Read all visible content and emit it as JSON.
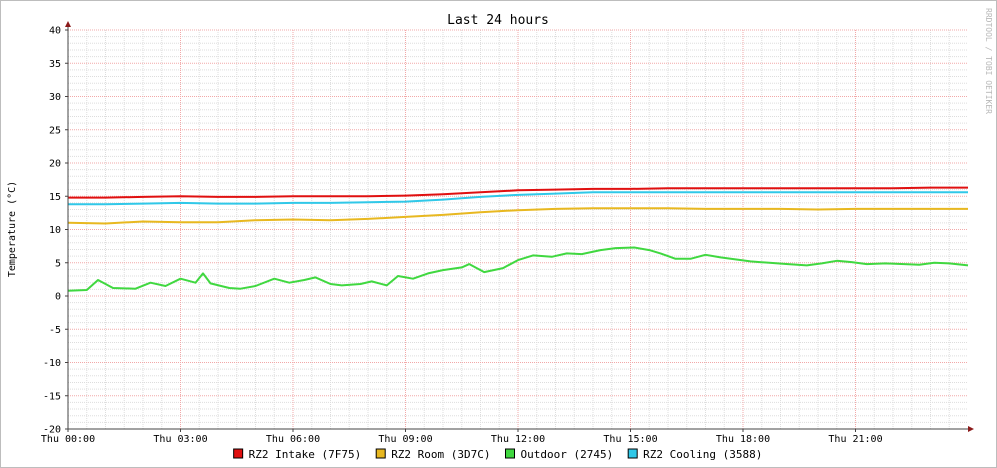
{
  "chart_data": {
    "type": "line",
    "title": "Last 24 hours",
    "xlabel": "",
    "ylabel": "Temperature (°C)",
    "watermark": "RRDTOOL / TOBI OETIKER",
    "ylim": [
      -20,
      40
    ],
    "yticks": [
      "40",
      "35",
      "30",
      "25",
      "20",
      "15",
      "10",
      "5",
      "0",
      "-5",
      "-10",
      "-15",
      "-20"
    ],
    "xlim_hours": [
      0,
      24
    ],
    "xticks": [
      {
        "h": 0,
        "label": "Thu 00:00"
      },
      {
        "h": 3,
        "label": "Thu 03:00"
      },
      {
        "h": 6,
        "label": "Thu 06:00"
      },
      {
        "h": 9,
        "label": "Thu 09:00"
      },
      {
        "h": 12,
        "label": "Thu 12:00"
      },
      {
        "h": 15,
        "label": "Thu 15:00"
      },
      {
        "h": 18,
        "label": "Thu 18:00"
      },
      {
        "h": 21,
        "label": "Thu 21:00"
      }
    ],
    "grid": true,
    "legend_position": "bottom",
    "series": [
      {
        "name": "RZ2 Intake (7F75)",
        "color": "#e01010",
        "points": [
          [
            0,
            14.8
          ],
          [
            1,
            14.8
          ],
          [
            2,
            14.9
          ],
          [
            3,
            15.0
          ],
          [
            4,
            14.9
          ],
          [
            5,
            14.9
          ],
          [
            6,
            15.0
          ],
          [
            7,
            15.0
          ],
          [
            8,
            15.0
          ],
          [
            9,
            15.1
          ],
          [
            10,
            15.3
          ],
          [
            11,
            15.6
          ],
          [
            12,
            15.9
          ],
          [
            13,
            16.0
          ],
          [
            14,
            16.1
          ],
          [
            15,
            16.1
          ],
          [
            16,
            16.2
          ],
          [
            17,
            16.2
          ],
          [
            18,
            16.2
          ],
          [
            19,
            16.2
          ],
          [
            20,
            16.2
          ],
          [
            21,
            16.2
          ],
          [
            22,
            16.2
          ],
          [
            23,
            16.3
          ],
          [
            24,
            16.3
          ]
        ]
      },
      {
        "name": "RZ2 Room (3D7C)",
        "color": "#e8b820",
        "points": [
          [
            0,
            11.0
          ],
          [
            1,
            10.9
          ],
          [
            2,
            11.2
          ],
          [
            3,
            11.1
          ],
          [
            4,
            11.1
          ],
          [
            5,
            11.4
          ],
          [
            6,
            11.5
          ],
          [
            7,
            11.4
          ],
          [
            8,
            11.6
          ],
          [
            9,
            11.9
          ],
          [
            10,
            12.2
          ],
          [
            11,
            12.6
          ],
          [
            12,
            12.9
          ],
          [
            13,
            13.1
          ],
          [
            14,
            13.2
          ],
          [
            15,
            13.2
          ],
          [
            16,
            13.2
          ],
          [
            17,
            13.1
          ],
          [
            18,
            13.1
          ],
          [
            19,
            13.1
          ],
          [
            20,
            13.0
          ],
          [
            21,
            13.1
          ],
          [
            22,
            13.1
          ],
          [
            23,
            13.1
          ],
          [
            24,
            13.1
          ]
        ]
      },
      {
        "name": "Outdoor (2745)",
        "color": "#40d840",
        "points": [
          [
            0,
            0.8
          ],
          [
            0.5,
            0.9
          ],
          [
            0.8,
            2.4
          ],
          [
            1.2,
            1.2
          ],
          [
            1.8,
            1.1
          ],
          [
            2.2,
            2.0
          ],
          [
            2.6,
            1.5
          ],
          [
            3.0,
            2.6
          ],
          [
            3.4,
            2.0
          ],
          [
            3.6,
            3.4
          ],
          [
            3.8,
            1.9
          ],
          [
            4.3,
            1.2
          ],
          [
            4.6,
            1.1
          ],
          [
            5.0,
            1.5
          ],
          [
            5.5,
            2.6
          ],
          [
            5.9,
            2.0
          ],
          [
            6.3,
            2.4
          ],
          [
            6.6,
            2.8
          ],
          [
            7.0,
            1.8
          ],
          [
            7.3,
            1.6
          ],
          [
            7.8,
            1.8
          ],
          [
            8.1,
            2.2
          ],
          [
            8.5,
            1.6
          ],
          [
            8.8,
            3.0
          ],
          [
            9.2,
            2.6
          ],
          [
            9.6,
            3.4
          ],
          [
            10.0,
            3.9
          ],
          [
            10.5,
            4.3
          ],
          [
            10.7,
            4.8
          ],
          [
            11.1,
            3.6
          ],
          [
            11.6,
            4.2
          ],
          [
            12.0,
            5.4
          ],
          [
            12.4,
            6.1
          ],
          [
            12.9,
            5.9
          ],
          [
            13.3,
            6.4
          ],
          [
            13.7,
            6.3
          ],
          [
            14.2,
            6.9
          ],
          [
            14.6,
            7.2
          ],
          [
            15.1,
            7.3
          ],
          [
            15.5,
            6.9
          ],
          [
            15.8,
            6.4
          ],
          [
            16.2,
            5.6
          ],
          [
            16.6,
            5.6
          ],
          [
            17.0,
            6.2
          ],
          [
            17.4,
            5.8
          ],
          [
            17.8,
            5.5
          ],
          [
            18.2,
            5.2
          ],
          [
            18.7,
            5.0
          ],
          [
            19.2,
            4.8
          ],
          [
            19.7,
            4.6
          ],
          [
            20.1,
            4.9
          ],
          [
            20.5,
            5.3
          ],
          [
            20.9,
            5.1
          ],
          [
            21.3,
            4.8
          ],
          [
            21.8,
            4.9
          ],
          [
            22.3,
            4.8
          ],
          [
            22.7,
            4.7
          ],
          [
            23.1,
            5.0
          ],
          [
            23.5,
            4.9
          ],
          [
            24.0,
            4.6
          ]
        ]
      },
      {
        "name": "RZ2 Cooling (3588)",
        "color": "#30c8e8",
        "points": [
          [
            0,
            13.8
          ],
          [
            1,
            13.8
          ],
          [
            2,
            13.9
          ],
          [
            3,
            14.0
          ],
          [
            4,
            13.9
          ],
          [
            5,
            13.9
          ],
          [
            6,
            14.0
          ],
          [
            7,
            14.0
          ],
          [
            8,
            14.1
          ],
          [
            9,
            14.2
          ],
          [
            10,
            14.5
          ],
          [
            11,
            14.9
          ],
          [
            12,
            15.2
          ],
          [
            13,
            15.4
          ],
          [
            14,
            15.6
          ],
          [
            15,
            15.6
          ],
          [
            16,
            15.6
          ],
          [
            17,
            15.6
          ],
          [
            18,
            15.6
          ],
          [
            19,
            15.6
          ],
          [
            20,
            15.6
          ],
          [
            21,
            15.6
          ],
          [
            22,
            15.6
          ],
          [
            23,
            15.6
          ],
          [
            24,
            15.6
          ]
        ]
      }
    ]
  }
}
